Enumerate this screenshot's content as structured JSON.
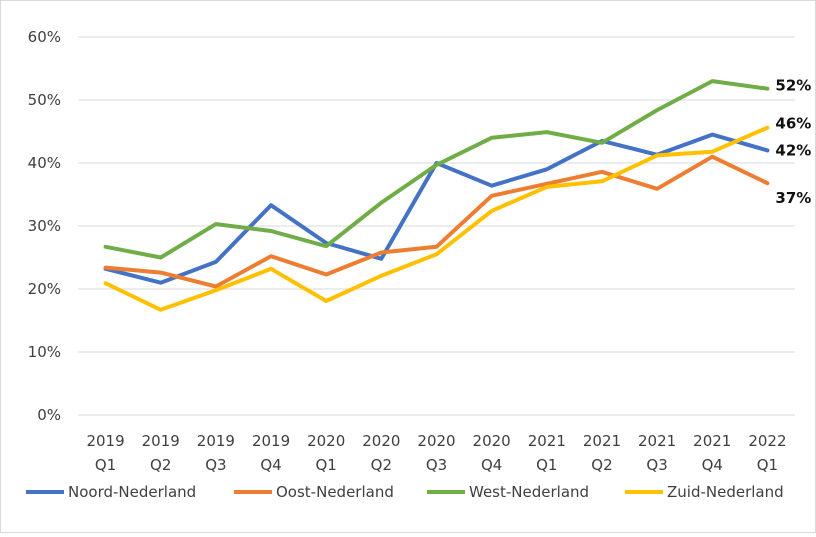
{
  "chart_data": {
    "type": "line",
    "title": "",
    "xlabel": "",
    "ylabel": "",
    "ylim": [
      0,
      60
    ],
    "yticks": [
      "0%",
      "10%",
      "20%",
      "30%",
      "40%",
      "50%",
      "60%"
    ],
    "categories": [
      [
        "2019",
        "Q1"
      ],
      [
        "2019",
        "Q2"
      ],
      [
        "2019",
        "Q3"
      ],
      [
        "2019",
        "Q4"
      ],
      [
        "2020",
        "Q1"
      ],
      [
        "2020",
        "Q2"
      ],
      [
        "2020",
        "Q3"
      ],
      [
        "2020",
        "Q4"
      ],
      [
        "2021",
        "Q1"
      ],
      [
        "2021",
        "Q2"
      ],
      [
        "2021",
        "Q3"
      ],
      [
        "2021",
        "Q4"
      ],
      [
        "2022",
        "Q1"
      ]
    ],
    "series": [
      {
        "name": "Noord-Nederland",
        "color": "#4472C4",
        "values": [
          23.2,
          21.0,
          24.3,
          33.3,
          27.3,
          24.8,
          40.0,
          36.4,
          39.0,
          43.5,
          41.3,
          44.5,
          42.0
        ],
        "end_label": "42%"
      },
      {
        "name": "Oost-Nederland",
        "color": "#ED7D31",
        "values": [
          23.4,
          22.6,
          20.4,
          25.2,
          22.3,
          25.8,
          26.7,
          34.8,
          36.7,
          38.6,
          35.9,
          41.0,
          36.8
        ],
        "end_label": "37%"
      },
      {
        "name": "West-Nederland",
        "color": "#70AD47",
        "values": [
          26.7,
          25.0,
          30.3,
          29.2,
          26.8,
          33.7,
          39.7,
          44.0,
          44.9,
          43.2,
          48.4,
          53.0,
          51.8
        ],
        "end_label": "52%"
      },
      {
        "name": "Zuid-Nederland",
        "color": "#FFC000",
        "values": [
          20.9,
          16.7,
          19.8,
          23.2,
          18.1,
          22.1,
          25.5,
          32.4,
          36.2,
          37.1,
          41.2,
          41.8,
          45.6
        ],
        "end_label": "46%"
      }
    ],
    "grid": true,
    "legend": "bottom"
  }
}
